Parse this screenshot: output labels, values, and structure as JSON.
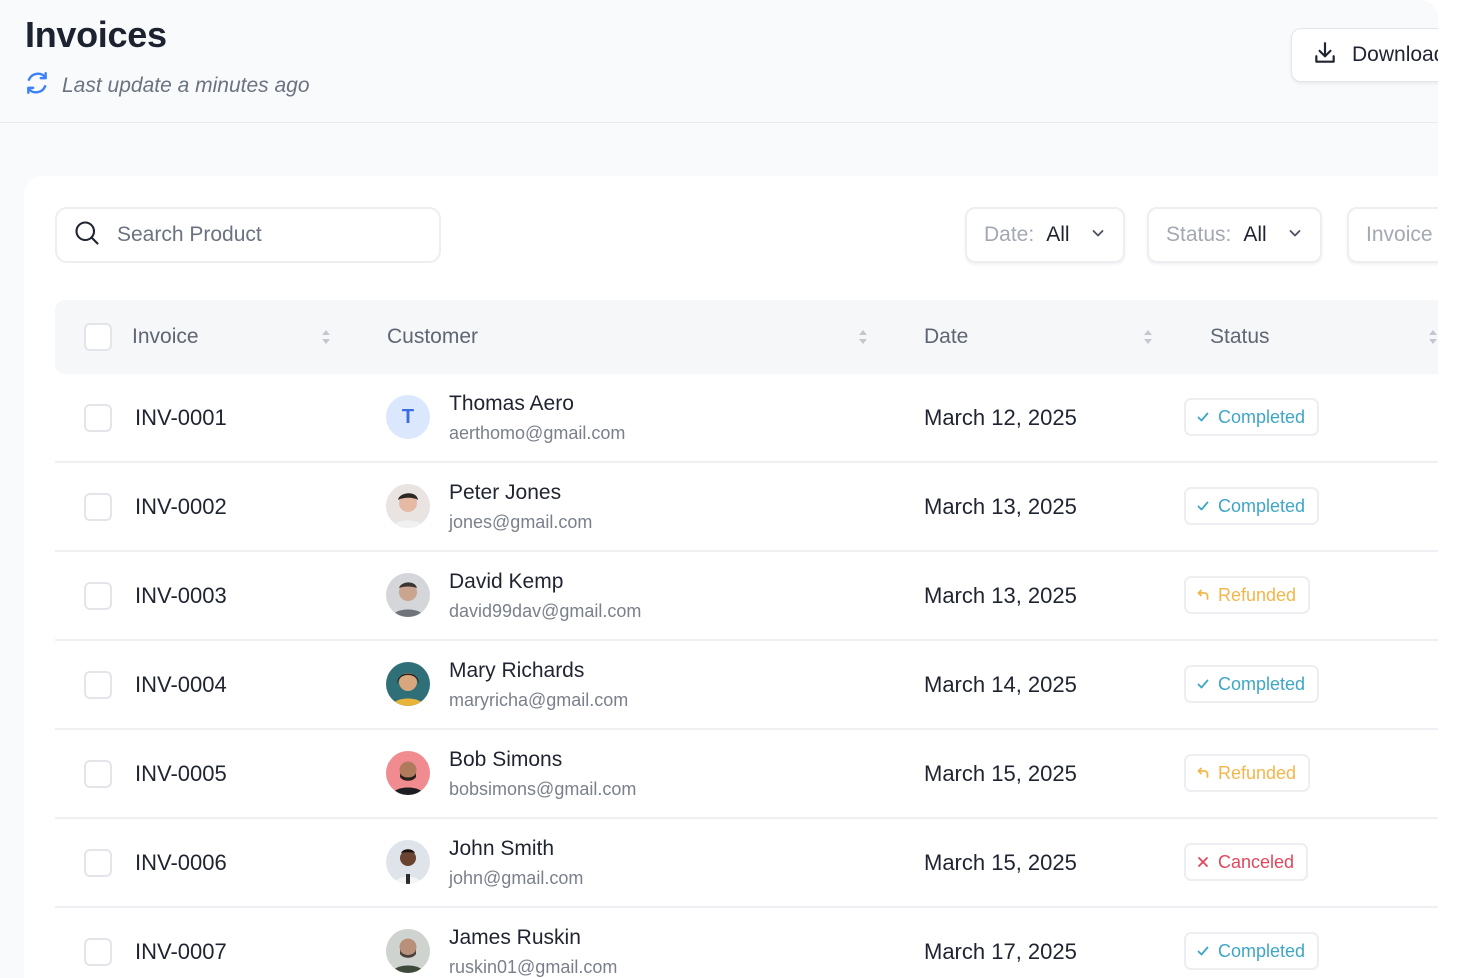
{
  "header": {
    "title": "Invoices",
    "last_update": "Last update a minutes ago",
    "download_label": "Download"
  },
  "toolbar": {
    "search_placeholder": "Search Product",
    "filters": [
      {
        "key": "Date:",
        "value": "All"
      },
      {
        "key": "Status:",
        "value": "All"
      },
      {
        "key": "Invoice",
        "value": ""
      }
    ]
  },
  "table": {
    "columns": [
      "Invoice",
      "Customer",
      "Date",
      "Status"
    ],
    "rows": [
      {
        "invoice": "INV-0001",
        "name": "Thomas Aero",
        "email": "aerthomo@gmail.com",
        "date": "March 12, 2025",
        "status": "Completed",
        "avatar_initial": "T"
      },
      {
        "invoice": "INV-0002",
        "name": "Peter Jones",
        "email": "jones@gmail.com",
        "date": "March 13, 2025",
        "status": "Completed"
      },
      {
        "invoice": "INV-0003",
        "name": "David Kemp",
        "email": "david99dav@gmail.com",
        "date": "March 13, 2025",
        "status": "Refunded"
      },
      {
        "invoice": "INV-0004",
        "name": "Mary Richards",
        "email": "maryricha@gmail.com",
        "date": "March 14, 2025",
        "status": "Completed"
      },
      {
        "invoice": "INV-0005",
        "name": "Bob Simons",
        "email": "bobsimons@gmail.com",
        "date": "March 15, 2025",
        "status": "Refunded"
      },
      {
        "invoice": "INV-0006",
        "name": "John Smith",
        "email": "john@gmail.com",
        "date": "March 15, 2025",
        "status": "Canceled"
      },
      {
        "invoice": "INV-0007",
        "name": "James Ruskin",
        "email": "ruskin01@gmail.com",
        "date": "March 17, 2025",
        "status": "Completed"
      }
    ]
  },
  "colors": {
    "completed": "#3ea6c6",
    "refunded": "#f3b64a",
    "canceled": "#e0475d",
    "accent": "#3b82f6"
  }
}
